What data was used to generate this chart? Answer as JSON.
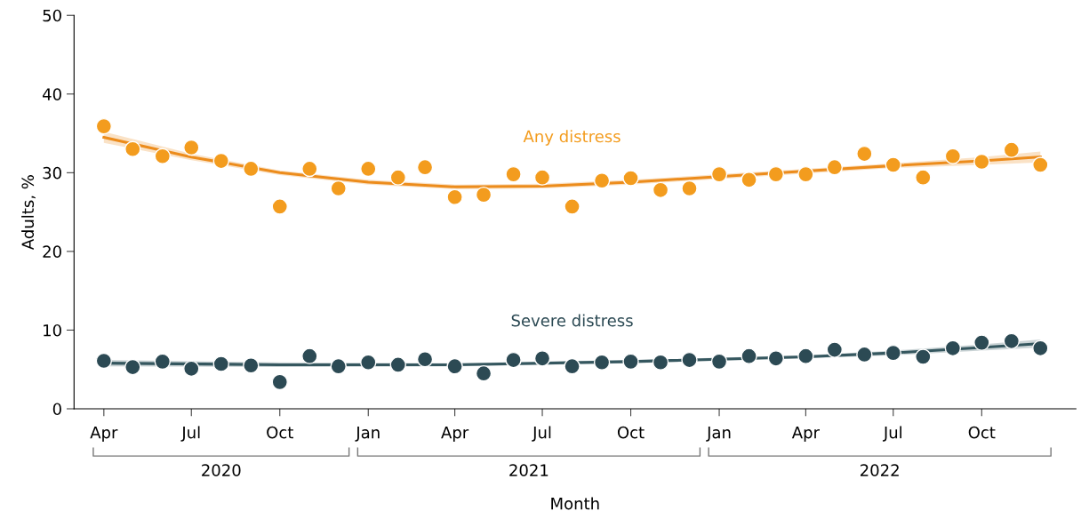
{
  "chart_data": {
    "type": "scatter",
    "xlabel": "Month",
    "ylabel": "Adults, %",
    "x": [
      "2020-04",
      "2020-05",
      "2020-06",
      "2020-07",
      "2020-08",
      "2020-09",
      "2020-10",
      "2020-11",
      "2020-12",
      "2021-01",
      "2021-02",
      "2021-03",
      "2021-04",
      "2021-05",
      "2021-06",
      "2021-07",
      "2021-08",
      "2021-09",
      "2021-10",
      "2021-11",
      "2021-12",
      "2022-01",
      "2022-02",
      "2022-03",
      "2022-04",
      "2022-05",
      "2022-06",
      "2022-07",
      "2022-08",
      "2022-09",
      "2022-10",
      "2022-11",
      "2022-12"
    ],
    "series": [
      {
        "name": "Any distress",
        "color": "#f39c1e",
        "marker": "circle",
        "values": [
          35.9,
          33.0,
          32.1,
          33.2,
          31.5,
          30.5,
          25.7,
          30.5,
          28.0,
          30.5,
          29.4,
          30.7,
          26.9,
          27.2,
          29.8,
          29.4,
          25.7,
          29.0,
          29.3,
          27.8,
          28.0,
          29.8,
          29.1,
          29.8,
          29.8,
          30.7,
          32.4,
          31.0,
          29.4,
          32.1,
          31.4,
          32.9,
          31.0
        ]
      },
      {
        "name": "Severe distress",
        "color": "#2c4a54",
        "marker": "circle",
        "values": [
          6.1,
          5.3,
          6.0,
          5.1,
          5.7,
          5.5,
          3.4,
          6.7,
          5.4,
          5.9,
          5.6,
          6.3,
          5.4,
          4.5,
          6.2,
          6.4,
          5.4,
          5.9,
          6.0,
          5.9,
          6.2,
          6.0,
          6.7,
          6.4,
          6.7,
          7.5,
          6.9,
          7.1,
          6.6,
          7.7,
          8.4,
          8.6,
          7.7
        ]
      },
      {
        "type": "line",
        "color": "#ec8c1c",
        "x": [
          "2020-04",
          "2020-07",
          "2020-10",
          "2021-01",
          "2021-04",
          "2021-07",
          "2021-10",
          "2022-01",
          "2022-04",
          "2022-07",
          "2022-10",
          "2022-12"
        ],
        "values": [
          34.5,
          32.0,
          30.0,
          28.8,
          28.2,
          28.3,
          28.8,
          29.5,
          30.2,
          30.9,
          31.5,
          32.0
        ],
        "lower": [
          33.8,
          31.6,
          29.7,
          28.5,
          27.9,
          28.0,
          28.5,
          29.2,
          29.9,
          30.6,
          31.0,
          31.3
        ],
        "upper": [
          35.2,
          32.4,
          30.3,
          29.1,
          28.5,
          28.6,
          29.1,
          29.8,
          30.5,
          31.2,
          32.0,
          32.7
        ]
      },
      {
        "type": "line",
        "color": "#35575f",
        "x": [
          "2020-04",
          "2020-10",
          "2021-04",
          "2021-10",
          "2022-04",
          "2022-07",
          "2022-10",
          "2022-12"
        ],
        "values": [
          5.8,
          5.6,
          5.6,
          6.0,
          6.6,
          7.1,
          7.8,
          8.3
        ],
        "lower": [
          5.4,
          5.3,
          5.4,
          5.8,
          6.4,
          6.8,
          7.4,
          7.8
        ],
        "upper": [
          6.2,
          5.9,
          5.8,
          6.2,
          6.8,
          7.4,
          8.2,
          8.8
        ]
      }
    ],
    "xlim": [
      "2020-03-01",
      "2023-01-07"
    ],
    "xticks": [
      {
        "value": "2020-04",
        "label": "Apr"
      },
      {
        "value": "2020-07",
        "label": "Jul"
      },
      {
        "value": "2020-10",
        "label": "Oct"
      },
      {
        "value": "2021-01",
        "label": "Jan"
      },
      {
        "value": "2021-04",
        "label": "Apr"
      },
      {
        "value": "2021-07",
        "label": "Jul"
      },
      {
        "value": "2021-10",
        "label": "Oct"
      },
      {
        "value": "2022-01",
        "label": "Jan"
      },
      {
        "value": "2022-04",
        "label": "Apr"
      },
      {
        "value": "2022-07",
        "label": "Jul"
      },
      {
        "value": "2022-10",
        "label": "Oct"
      }
    ],
    "ylim": [
      0,
      50
    ],
    "yticks": [
      0,
      10,
      20,
      30,
      40,
      50
    ],
    "annotations": [
      "2020",
      "2021",
      "2022"
    ],
    "grid": false,
    "legend": false
  }
}
